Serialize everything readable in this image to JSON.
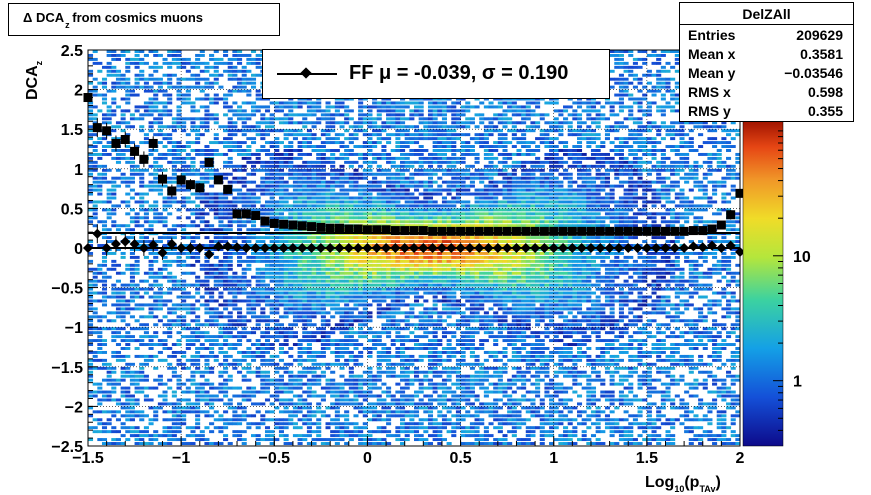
{
  "title": {
    "main": "Δ DCA",
    "sub": "z",
    "rest": " from cosmics muons"
  },
  "stats": {
    "name": "DelZAll",
    "rows": [
      {
        "label": "Entries",
        "value": "209629"
      },
      {
        "label": "Mean x",
        "value": "0.3581"
      },
      {
        "label": "Mean y",
        "value": "−0.03546"
      },
      {
        "label": "RMS x",
        "value": "0.598"
      },
      {
        "label": "RMS y",
        "value": "0.355"
      }
    ]
  },
  "legend": {
    "text": "FF μ = -0.039, σ =   0.190"
  },
  "colors": {
    "mean_marker": "#000000",
    "fit_line": "#000000"
  },
  "chart_data": {
    "type": "heatmap",
    "xlabel": {
      "main": "Log",
      "sub1": "10",
      "mid": "(p",
      "sub2": "TAv",
      "end": ")"
    },
    "ylabel": {
      "main": "DCA",
      "sub": "z"
    },
    "xlim": [
      -1.5,
      2
    ],
    "ylim": [
      -2.5,
      2.5
    ],
    "x_ticks": [
      {
        "v": -1.5,
        "label": "−1.5"
      },
      {
        "v": -1,
        "label": "−1"
      },
      {
        "v": -0.5,
        "label": "−0.5"
      },
      {
        "v": 0,
        "label": "0"
      },
      {
        "v": 0.5,
        "label": "0.5"
      },
      {
        "v": 1,
        "label": "1"
      },
      {
        "v": 1.5,
        "label": "1.5"
      },
      {
        "v": 2,
        "label": "2"
      }
    ],
    "y_ticks": [
      {
        "v": -2.5,
        "label": "−2.5"
      },
      {
        "v": -2,
        "label": "−2"
      },
      {
        "v": -1.5,
        "label": "−1.5"
      },
      {
        "v": -1,
        "label": "−1"
      },
      {
        "v": -0.5,
        "label": "−0.5"
      },
      {
        "v": 0,
        "label": "0"
      },
      {
        "v": 0.5,
        "label": "0.5"
      },
      {
        "v": 1,
        "label": "1"
      },
      {
        "v": 1.5,
        "label": "1.5"
      },
      {
        "v": 2,
        "label": "2"
      },
      {
        "v": 2.5,
        "label": "2.5"
      }
    ],
    "color_scale": "log",
    "colorbar_ticks": [
      {
        "v": 1,
        "label": "1"
      },
      {
        "v": 10,
        "label": "10"
      }
    ],
    "zlim": [
      0.3,
      120
    ],
    "grid": true,
    "fit_line_y": [
      0,
      0.19
    ],
    "series": [
      {
        "name": "mean",
        "marker": "diamond",
        "x": [
          -1.5,
          -1.45,
          -1.4,
          -1.35,
          -1.3,
          -1.25,
          -1.2,
          -1.15,
          -1.1,
          -1.05,
          -1.0,
          -0.95,
          -0.9,
          -0.85,
          -0.8,
          -0.75,
          -0.7,
          -0.65,
          -0.6,
          -0.55,
          -0.5,
          -0.45,
          -0.4,
          -0.35,
          -0.3,
          -0.25,
          -0.2,
          -0.15,
          -0.1,
          -0.05,
          0.0,
          0.05,
          0.1,
          0.15,
          0.2,
          0.25,
          0.3,
          0.35,
          0.4,
          0.45,
          0.5,
          0.55,
          0.6,
          0.65,
          0.7,
          0.75,
          0.8,
          0.85,
          0.9,
          0.95,
          1.0,
          1.05,
          1.1,
          1.15,
          1.2,
          1.25,
          1.3,
          1.35,
          1.4,
          1.45,
          1.5,
          1.55,
          1.6,
          1.65,
          1.7,
          1.75,
          1.8,
          1.85,
          1.9,
          1.95,
          2.0
        ],
        "y": [
          0.0,
          0.18,
          0.0,
          0.05,
          0.08,
          0.05,
          0.0,
          0.04,
          -0.06,
          0.05,
          0.0,
          0.0,
          0.0,
          -0.08,
          0.02,
          0.02,
          0.01,
          0.0,
          0.0,
          0.0,
          0.0,
          0.0,
          0.0,
          0.0,
          0.0,
          0.0,
          0.0,
          0.0,
          0.0,
          0.0,
          0.0,
          0.0,
          0.0,
          0.0,
          0.0,
          0.0,
          0.0,
          0.0,
          0.0,
          0.0,
          0.0,
          0.0,
          0.0,
          0.0,
          0.0,
          0.0,
          0.0,
          0.0,
          0.0,
          0.0,
          0.0,
          0.0,
          0.0,
          0.0,
          0.0,
          0.0,
          0.0,
          0.0,
          0.0,
          0.0,
          0.0,
          0.0,
          0.0,
          0.0,
          0.0,
          0.02,
          0.01,
          0.03,
          0.0,
          0.03,
          -0.05
        ],
        "err": [
          0.15,
          0.12,
          0.1,
          0.1,
          0.1,
          0.1,
          0.1,
          0.09,
          0.09,
          0.08,
          0.07,
          0.07,
          0.06,
          0.06,
          0.05,
          0.04,
          0.03,
          0.03,
          0.02,
          0.02,
          0.02,
          0.02,
          0.02,
          0.02,
          0.02,
          0.02,
          0.02,
          0.02,
          0.02,
          0.02,
          0.02,
          0.02,
          0.02,
          0.02,
          0.02,
          0.02,
          0.02,
          0.02,
          0.02,
          0.02,
          0.02,
          0.02,
          0.02,
          0.02,
          0.02,
          0.02,
          0.02,
          0.02,
          0.02,
          0.02,
          0.02,
          0.02,
          0.02,
          0.02,
          0.02,
          0.02,
          0.02,
          0.02,
          0.02,
          0.02,
          0.02,
          0.02,
          0.02,
          0.02,
          0.03,
          0.03,
          0.04,
          0.04,
          0.05,
          0.06,
          0.08
        ]
      },
      {
        "name": "rms",
        "marker": "square",
        "x": [
          -1.5,
          -1.45,
          -1.4,
          -1.35,
          -1.3,
          -1.25,
          -1.2,
          -1.15,
          -1.1,
          -1.05,
          -1.0,
          -0.95,
          -0.9,
          -0.85,
          -0.8,
          -0.75,
          -0.7,
          -0.65,
          -0.6,
          -0.55,
          -0.5,
          -0.45,
          -0.4,
          -0.35,
          -0.3,
          -0.25,
          -0.2,
          -0.15,
          -0.1,
          -0.05,
          0.0,
          0.05,
          0.1,
          0.15,
          0.2,
          0.25,
          0.3,
          0.35,
          0.4,
          0.45,
          0.5,
          0.55,
          0.6,
          0.65,
          0.7,
          0.75,
          0.8,
          0.85,
          0.9,
          0.95,
          1.0,
          1.05,
          1.1,
          1.15,
          1.2,
          1.25,
          1.3,
          1.35,
          1.4,
          1.45,
          1.5,
          1.55,
          1.6,
          1.65,
          1.7,
          1.75,
          1.8,
          1.85,
          1.9,
          1.95,
          2.0
        ],
        "y": [
          1.9,
          1.52,
          1.48,
          1.32,
          1.37,
          1.22,
          1.12,
          1.32,
          0.87,
          0.72,
          0.86,
          0.8,
          0.76,
          1.08,
          0.86,
          0.74,
          0.43,
          0.43,
          0.41,
          0.34,
          0.31,
          0.3,
          0.29,
          0.28,
          0.27,
          0.26,
          0.25,
          0.25,
          0.24,
          0.24,
          0.23,
          0.23,
          0.23,
          0.22,
          0.22,
          0.22,
          0.22,
          0.21,
          0.21,
          0.21,
          0.21,
          0.21,
          0.21,
          0.21,
          0.21,
          0.21,
          0.21,
          0.21,
          0.21,
          0.21,
          0.21,
          0.21,
          0.21,
          0.21,
          0.21,
          0.21,
          0.21,
          0.21,
          0.21,
          0.21,
          0.21,
          0.21,
          0.21,
          0.21,
          0.21,
          0.22,
          0.22,
          0.24,
          0.29,
          0.42,
          0.69
        ],
        "err": [
          0.15,
          0.12,
          0.1,
          0.1,
          0.1,
          0.1,
          0.1,
          0.09,
          0.09,
          0.08,
          0.07,
          0.07,
          0.06,
          0.06,
          0.05,
          0.04,
          0.03,
          0.03,
          0.02,
          0.02,
          0.02,
          0.02,
          0.02,
          0.02,
          0.02,
          0.02,
          0.02,
          0.02,
          0.02,
          0.02,
          0.02,
          0.02,
          0.02,
          0.02,
          0.02,
          0.02,
          0.02,
          0.02,
          0.02,
          0.02,
          0.02,
          0.02,
          0.02,
          0.02,
          0.02,
          0.02,
          0.02,
          0.02,
          0.02,
          0.02,
          0.02,
          0.02,
          0.02,
          0.02,
          0.02,
          0.02,
          0.02,
          0.02,
          0.02,
          0.02,
          0.02,
          0.02,
          0.02,
          0.02,
          0.03,
          0.03,
          0.04,
          0.04,
          0.05,
          0.06,
          0.08
        ]
      }
    ]
  }
}
